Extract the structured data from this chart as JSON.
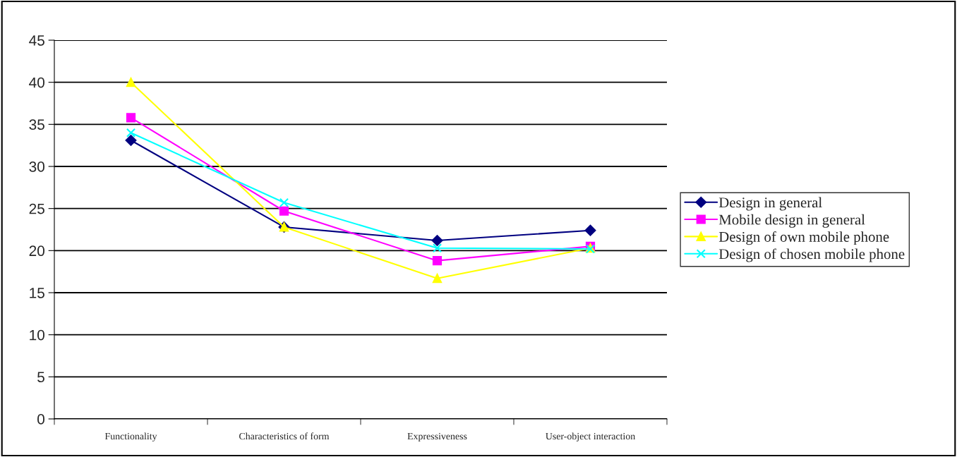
{
  "chart_data": {
    "type": "line",
    "categories": [
      "Functionality",
      "Characteristics of form",
      "Expressiveness",
      "User-object interaction"
    ],
    "series": [
      {
        "name": "Design in general",
        "color": "#000080",
        "marker": "diamond",
        "values": [
          33.1,
          22.8,
          21.2,
          22.4
        ]
      },
      {
        "name": "Mobile design in general",
        "color": "#ff00ff",
        "marker": "square",
        "values": [
          35.8,
          24.7,
          18.8,
          20.5
        ]
      },
      {
        "name": "Design of own mobile phone",
        "color": "#ffff00",
        "marker": "triangle",
        "values": [
          40,
          22.8,
          16.7,
          20.3
        ]
      },
      {
        "name": "Design of chosen mobile phone",
        "color": "#00ffff",
        "marker": "cross",
        "values": [
          34.0,
          25.7,
          20.3,
          20.2
        ]
      }
    ],
    "ylim": [
      0,
      45
    ],
    "yticks": [
      0,
      5,
      10,
      15,
      20,
      25,
      30,
      35,
      40,
      45
    ],
    "grid": "y",
    "legend": "right",
    "line_style": "solid"
  }
}
